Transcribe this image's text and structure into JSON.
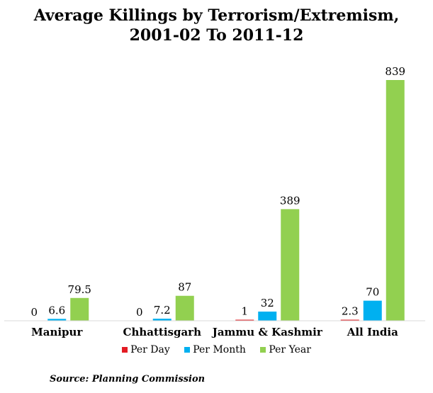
{
  "chart_data": {
    "type": "bar",
    "title_lines": [
      "Average Killings by Terrorism/Extremism,",
      "2001-02 To 2011-12"
    ],
    "categories": [
      "Manipur",
      "Chhattisgarh",
      "Jammu & Kashmir",
      "All India"
    ],
    "series": [
      {
        "name": "Per Day",
        "color": "#e31b23",
        "values": [
          0,
          0,
          1,
          2.3
        ],
        "labels": [
          "0",
          "0",
          "1",
          "2.3"
        ]
      },
      {
        "name": "Per Month",
        "color": "#00b0f0",
        "values": [
          6.6,
          7.2,
          32,
          70
        ],
        "labels": [
          "6.6",
          "7.2",
          "32",
          "70"
        ]
      },
      {
        "name": "Per Year",
        "color": "#92d050",
        "values": [
          79.5,
          87,
          389,
          839
        ],
        "labels": [
          "79.5",
          "87",
          "389",
          "839"
        ]
      }
    ],
    "ylim": [
      0,
      839
    ],
    "grid": false,
    "legend_position": "bottom"
  },
  "source": "Source: Planning Commission"
}
